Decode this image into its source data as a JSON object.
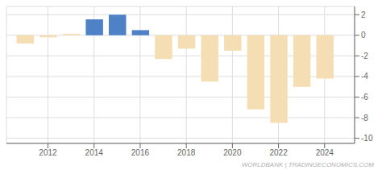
{
  "chart_data": {
    "type": "bar",
    "x": [
      2011,
      2012,
      2013,
      2014,
      2015,
      2016,
      2017,
      2018,
      2019,
      2020,
      2021,
      2022,
      2023,
      2024
    ],
    "values": [
      -0.8,
      -0.2,
      0.15,
      1.55,
      2.0,
      0.5,
      -2.3,
      -1.3,
      -4.5,
      -1.5,
      -7.2,
      -8.5,
      -5.0,
      -4.2
    ],
    "colors": [
      "#f5deb3",
      "#f5deb3",
      "#f5deb3",
      "#4f81c7",
      "#4f81c7",
      "#4f81c7",
      "#f5deb3",
      "#f5deb3",
      "#f5deb3",
      "#f5deb3",
      "#f5deb3",
      "#f5deb3",
      "#f5deb3",
      "#f5deb3"
    ],
    "xlim": [
      2010.2,
      2025.3
    ],
    "xticks": [
      2012,
      2014,
      2016,
      2018,
      2020,
      2022,
      2024
    ],
    "ylim": [
      -10.5,
      2.8
    ],
    "yticks": [
      2,
      0,
      -2,
      -4,
      -6,
      -8,
      -10
    ],
    "grid": true,
    "annotation": "WORLDBANK | TRADINGECONOMICS.COM"
  }
}
